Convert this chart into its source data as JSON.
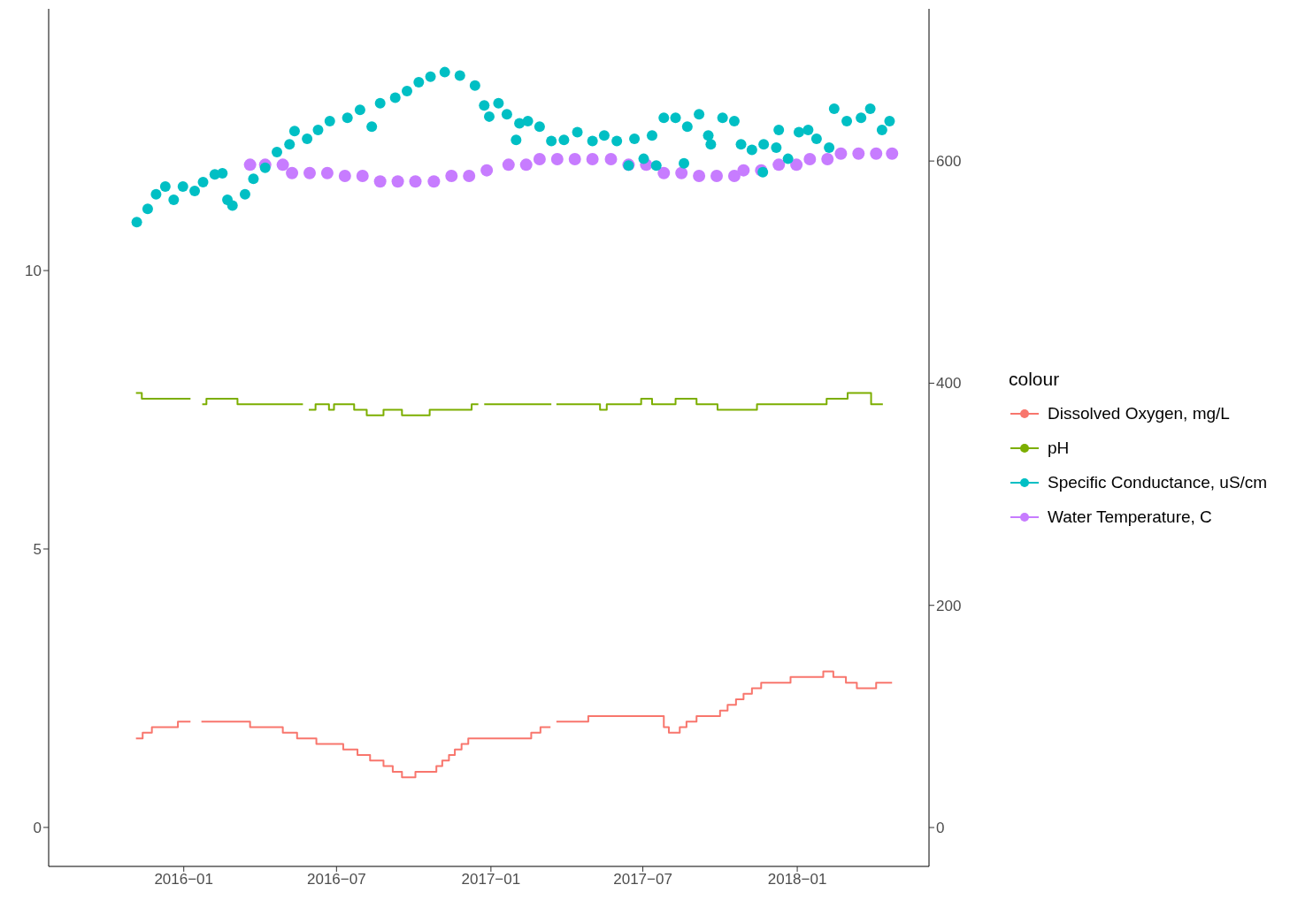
{
  "chart_data": {
    "type": "step",
    "legend_title": "colour",
    "legend": "right",
    "grid": false,
    "xlim": [
      "2015-07-24",
      "2018-06-07"
    ],
    "xticks": [
      {
        "value": "2016-01-01",
        "label": "2016−01"
      },
      {
        "value": "2016-07-01",
        "label": "2016−07"
      },
      {
        "value": "2017-01-01",
        "label": "2017−01"
      },
      {
        "value": "2017-07-01",
        "label": "2017−07"
      },
      {
        "value": "2018-01-01",
        "label": "2018−01"
      }
    ],
    "ylim": [
      -0.7,
      14.7
    ],
    "yticks": [
      0,
      5,
      10
    ],
    "y2lim": [
      -35,
      737
    ],
    "y2ticks": [
      0,
      200,
      400,
      600
    ],
    "series": [
      {
        "name": "Dissolved Oxygen, mg/L",
        "color": "#f8766d",
        "x": [
          "2015-11-05",
          "2015-11-13",
          "2015-11-24",
          "2015-12-25",
          "2016-01-09",
          "2016-01-15",
          "2016-01-22",
          "2016-03-20",
          "2016-04-28",
          "2016-05-15",
          "2016-06-07",
          "2016-07-09",
          "2016-07-26",
          "2016-08-10",
          "2016-08-26",
          "2016-09-06",
          "2016-09-17",
          "2016-10-03",
          "2016-10-28",
          "2016-11-04",
          "2016-11-12",
          "2016-11-19",
          "2016-11-27",
          "2016-12-05",
          "2017-02-18",
          "2017-03-01",
          "2017-03-13",
          "2017-03-14",
          "2017-03-20",
          "2017-04-27",
          "2017-07-18",
          "2017-07-26",
          "2017-08-01",
          "2017-08-14",
          "2017-08-22",
          "2017-09-03",
          "2017-10-01",
          "2017-10-10",
          "2017-10-20",
          "2017-10-29",
          "2017-11-08",
          "2017-11-19",
          "2017-12-24",
          "2018-02-01",
          "2018-02-13",
          "2018-02-28",
          "2018-03-13",
          "2018-04-05",
          "2018-04-24"
        ],
        "values": [
          1.6,
          1.7,
          1.8,
          1.9,
          1.9,
          null,
          1.9,
          1.8,
          1.7,
          1.6,
          1.5,
          1.4,
          1.3,
          1.2,
          1.1,
          1.0,
          0.9,
          1.0,
          1.1,
          1.2,
          1.3,
          1.4,
          1.5,
          1.6,
          1.7,
          1.8,
          1.8,
          null,
          1.9,
          2.0,
          2.0,
          1.8,
          1.7,
          1.8,
          1.9,
          2.0,
          2.1,
          2.2,
          2.3,
          2.4,
          2.5,
          2.6,
          2.7,
          2.8,
          2.7,
          2.6,
          2.5,
          2.6,
          2.6
        ]
      },
      {
        "name": "pH",
        "color": "#7cae00",
        "x": [
          "2015-11-05",
          "2015-11-12",
          "2016-01-09",
          "2016-01-15",
          "2016-01-23",
          "2016-01-28",
          "2016-03-05",
          "2016-05-22",
          "2016-05-25",
          "2016-05-29",
          "2016-06-06",
          "2016-06-22",
          "2016-06-28",
          "2016-07-22",
          "2016-08-06",
          "2016-08-26",
          "2016-09-17",
          "2016-10-20",
          "2016-12-09",
          "2016-12-17",
          "2016-12-20",
          "2016-12-24",
          "2017-03-14",
          "2017-03-16",
          "2017-03-20",
          "2017-05-11",
          "2017-05-19",
          "2017-06-29",
          "2017-07-12",
          "2017-08-09",
          "2017-09-03",
          "2017-09-28",
          "2017-11-14",
          "2018-02-05",
          "2018-03-02",
          "2018-03-30",
          "2018-04-13"
        ],
        "values": [
          7.8,
          7.7,
          7.7,
          null,
          7.6,
          7.7,
          7.6,
          7.6,
          null,
          7.5,
          7.6,
          7.5,
          7.6,
          7.5,
          7.4,
          7.5,
          7.4,
          7.5,
          7.6,
          7.6,
          null,
          7.6,
          7.6,
          null,
          7.6,
          7.5,
          7.6,
          7.7,
          7.6,
          7.7,
          7.6,
          7.5,
          7.6,
          7.7,
          7.8,
          7.6,
          7.6
        ]
      },
      {
        "name": "Specific Conductance, uS/cm",
        "type": "scatter",
        "marker": "circle",
        "axis": "y2",
        "color": "#00bfc4",
        "x": [
          "2015-11-06",
          "2015-11-19",
          "2015-11-29",
          "2015-12-10",
          "2015-12-20",
          "2015-12-31",
          "2016-01-14",
          "2016-01-24",
          "2016-02-07",
          "2016-02-16",
          "2016-02-22",
          "2016-02-28",
          "2016-03-14",
          "2016-03-24",
          "2016-04-07",
          "2016-04-21",
          "2016-05-06",
          "2016-05-12",
          "2016-05-27",
          "2016-06-09",
          "2016-06-23",
          "2016-07-14",
          "2016-07-29",
          "2016-08-12",
          "2016-08-22",
          "2016-09-09",
          "2016-09-23",
          "2016-10-07",
          "2016-10-21",
          "2016-11-07",
          "2016-11-25",
          "2016-12-13",
          "2016-12-24",
          "2016-12-30",
          "2017-01-10",
          "2017-01-20",
          "2017-01-31",
          "2017-02-04",
          "2017-02-14",
          "2017-02-28",
          "2017-03-14",
          "2017-03-29",
          "2017-04-14",
          "2017-05-02",
          "2017-05-16",
          "2017-05-31",
          "2017-06-14",
          "2017-06-21",
          "2017-07-02",
          "2017-07-12",
          "2017-07-17",
          "2017-07-26",
          "2017-08-09",
          "2017-08-19",
          "2017-08-23",
          "2017-09-06",
          "2017-09-17",
          "2017-09-20",
          "2017-10-04",
          "2017-10-18",
          "2017-10-26",
          "2017-11-08",
          "2017-11-21",
          "2017-11-22",
          "2017-12-07",
          "2017-12-10",
          "2017-12-21",
          "2018-01-03",
          "2018-01-14",
          "2018-01-24",
          "2018-02-08",
          "2018-02-14",
          "2018-03-01",
          "2018-03-18",
          "2018-03-29",
          "2018-04-12",
          "2018-04-21"
        ],
        "values": [
          545,
          557,
          570,
          577,
          565,
          577,
          573,
          581,
          588,
          589,
          565,
          560,
          570,
          584,
          594,
          608,
          615,
          627,
          620,
          628,
          636,
          639,
          646,
          631,
          652,
          657,
          663,
          671,
          676,
          680,
          677,
          668,
          650,
          640,
          652,
          642,
          619,
          634,
          636,
          631,
          618,
          619,
          626,
          618,
          623,
          618,
          596,
          620,
          602,
          623,
          596,
          639,
          639,
          598,
          631,
          642,
          623,
          615,
          639,
          636,
          615,
          610,
          590,
          615,
          612,
          628,
          602,
          626,
          628,
          620,
          612,
          647,
          636,
          639,
          647,
          628,
          636
        ]
      },
      {
        "name": "Water Temperature, C",
        "type": "scatter",
        "marker": "circle",
        "color": "#c77cff",
        "x": [
          "2016-03-20",
          "2016-04-07",
          "2016-04-28",
          "2016-05-09",
          "2016-05-30",
          "2016-06-20",
          "2016-07-11",
          "2016-08-01",
          "2016-08-22",
          "2016-09-12",
          "2016-10-03",
          "2016-10-25",
          "2016-11-15",
          "2016-12-06",
          "2016-12-27",
          "2017-01-22",
          "2017-02-12",
          "2017-02-28",
          "2017-03-21",
          "2017-04-11",
          "2017-05-02",
          "2017-05-24",
          "2017-06-14",
          "2017-07-05",
          "2017-07-26",
          "2017-08-16",
          "2017-09-06",
          "2017-09-27",
          "2017-10-18",
          "2017-10-29",
          "2017-11-19",
          "2017-12-10",
          "2017-12-31",
          "2018-01-16",
          "2018-02-06",
          "2018-02-22",
          "2018-03-15",
          "2018-04-05",
          "2018-04-24"
        ],
        "values": [
          11.9,
          11.9,
          11.9,
          11.75,
          11.75,
          11.75,
          11.7,
          11.7,
          11.6,
          11.6,
          11.6,
          11.6,
          11.7,
          11.7,
          11.8,
          11.9,
          11.9,
          12.0,
          12.0,
          12.0,
          12.0,
          12.0,
          11.9,
          11.9,
          11.75,
          11.75,
          11.7,
          11.7,
          11.7,
          11.8,
          11.8,
          11.9,
          11.9,
          12.0,
          12.0,
          12.1,
          12.1,
          12.1,
          12.1
        ]
      }
    ]
  }
}
